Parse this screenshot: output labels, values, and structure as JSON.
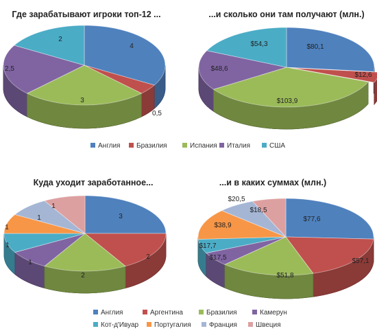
{
  "chart_data": [
    {
      "type": "pie",
      "title": "Где зарабатывают  игроки топ-12 ...",
      "categories": [
        "Англия",
        "Бразилия",
        "Испания",
        "Италия",
        "США"
      ],
      "values": [
        4,
        0.5,
        3,
        2.5,
        2
      ],
      "labels": [
        "4",
        "0,5",
        "3",
        "2,5",
        "2"
      ],
      "colors": [
        "#4F81BD",
        "#C0504D",
        "#9BBB59",
        "#8064A2",
        "#4BACC6"
      ]
    },
    {
      "type": "pie",
      "title": "...и сколько  они там получают (млн.)",
      "categories": [
        "Англия",
        "Бразилия",
        "Испания",
        "Италия",
        "США"
      ],
      "values": [
        80.1,
        12.6,
        103.9,
        48.6,
        54.3
      ],
      "labels": [
        "$80,1",
        "$12,6",
        "$103,9",
        "$48,6",
        "$54,3"
      ],
      "colors": [
        "#4F81BD",
        "#C0504D",
        "#9BBB59",
        "#8064A2",
        "#4BACC6"
      ]
    },
    {
      "type": "pie",
      "title": "Куда уходит заработанное...",
      "categories": [
        "Англия",
        "Аргентина",
        "Бразилия",
        "Камерун",
        "Кот-д'Ивуар",
        "Португалия",
        "Франция",
        "Швеция"
      ],
      "values": [
        3,
        2,
        2,
        1,
        1,
        1,
        1,
        1
      ],
      "labels": [
        "3",
        "2",
        "2",
        "1",
        "1",
        "1",
        "1",
        "1"
      ],
      "colors": [
        "#4F81BD",
        "#C0504D",
        "#9BBB59",
        "#8064A2",
        "#4BACC6",
        "#F79646",
        "#A5B6D5",
        "#DDA0A0"
      ]
    },
    {
      "type": "pie",
      "title": "...и в каких суммах (млн.)",
      "categories": [
        "Англия",
        "Аргентина",
        "Бразилия",
        "Камерун",
        "Кот-д'Ивуар",
        "Португалия",
        "Франция",
        "Швеция"
      ],
      "values": [
        77.6,
        57.1,
        51.8,
        17.5,
        17.7,
        38.9,
        20.5,
        18.5
      ],
      "labels": [
        "$77,6",
        "$57,1",
        "$51,8",
        "$17,5",
        "$17,7",
        "$38,9",
        "$20,5",
        "$18,5"
      ],
      "colors": [
        "#4F81BD",
        "#C0504D",
        "#9BBB59",
        "#8064A2",
        "#4BACC6",
        "#F79646",
        "#A5B6D5",
        "#DDA0A0"
      ]
    }
  ],
  "legends": [
    {
      "items": [
        "Англия",
        "Бразилия",
        "Испания",
        "Италия",
        "США"
      ],
      "colors": [
        "#4F81BD",
        "#C0504D",
        "#9BBB59",
        "#8064A2",
        "#4BACC6"
      ]
    },
    {
      "items": [
        "Англия",
        "Аргентина",
        "Бразилия",
        "Камерун",
        "Кот-д'Ивуар",
        "Португалия",
        "Франция",
        "Швеция"
      ],
      "colors": [
        "#4F81BD",
        "#C0504D",
        "#9BBB59",
        "#8064A2",
        "#4BACC6",
        "#F79646",
        "#A5B6D5",
        "#DDA0A0"
      ]
    }
  ]
}
